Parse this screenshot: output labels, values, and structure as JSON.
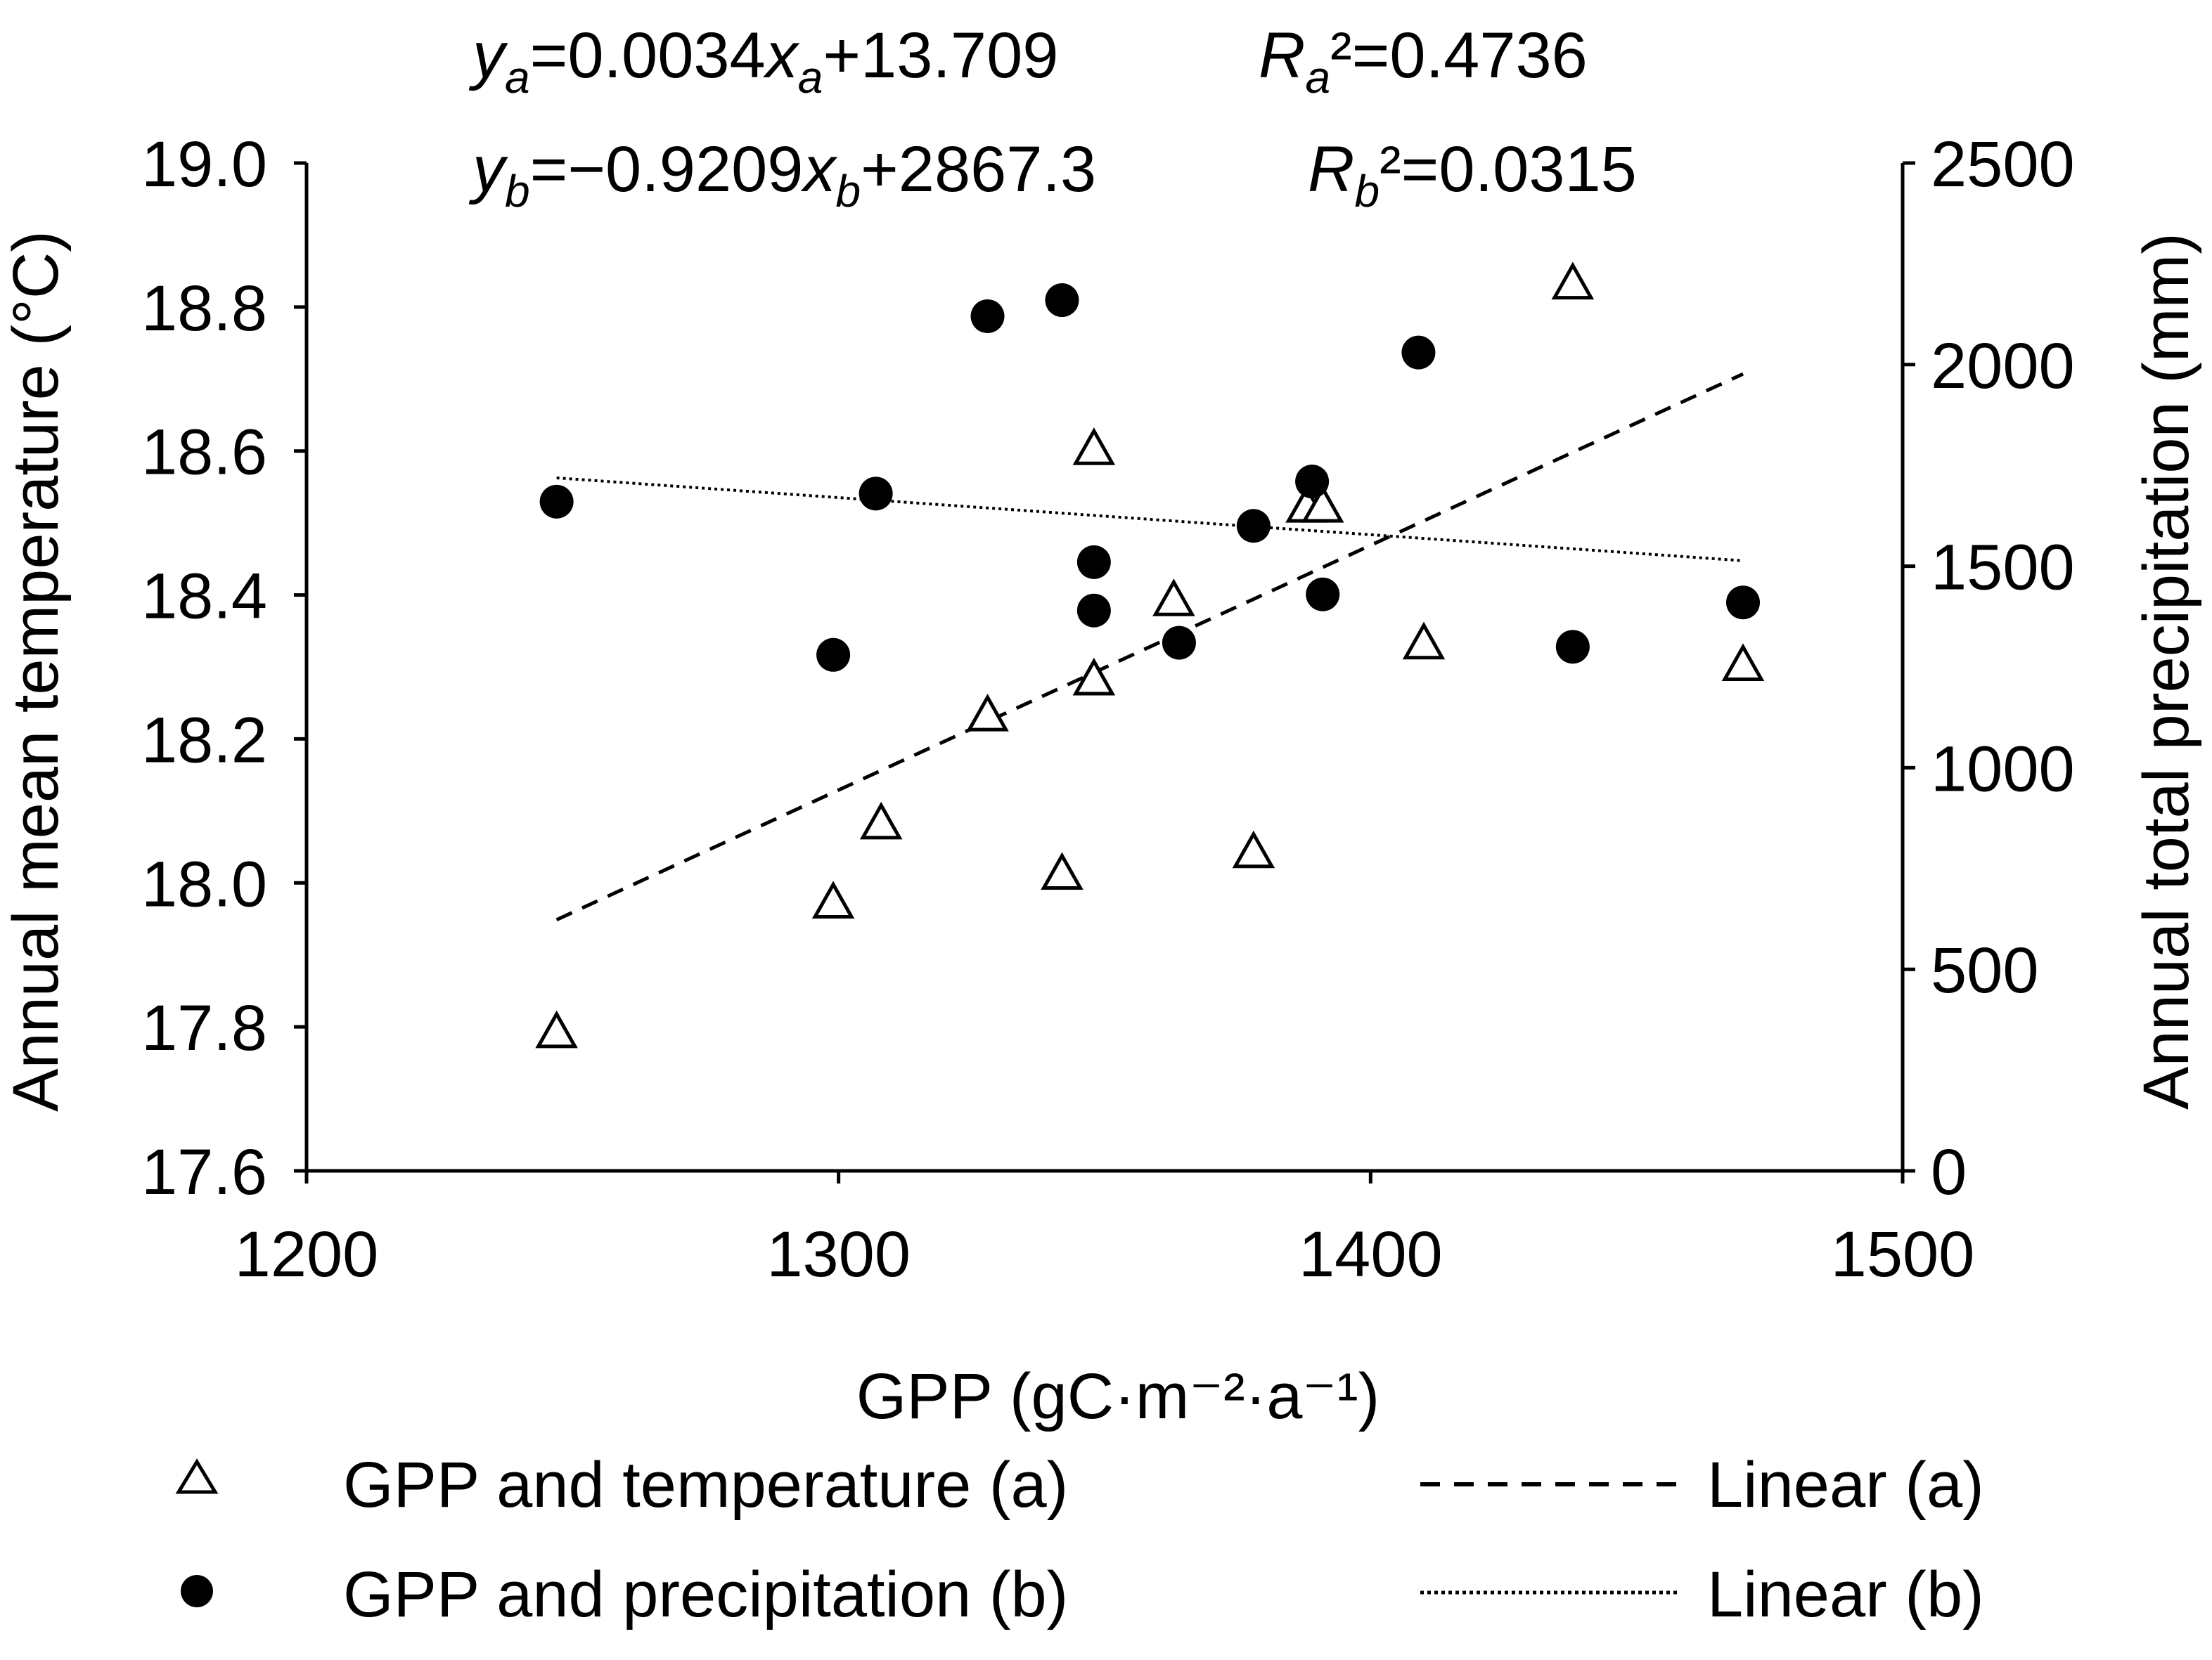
{
  "chart_data": {
    "type": "scatter",
    "xlabel": "GPP (gC·m⁻²·a⁻¹)",
    "ylabel_left": "Annual mean temperature (°C)",
    "ylabel_right": "Annual total precipitation (mm)",
    "xlim": [
      1200,
      1500
    ],
    "ylim_left": [
      17.6,
      19.0
    ],
    "ylim_right": [
      0,
      2500
    ],
    "x_ticks": [
      "1200",
      "1300",
      "1400",
      "1500"
    ],
    "y_left_ticks": [
      "17.6",
      "17.8",
      "18.0",
      "18.2",
      "18.4",
      "18.6",
      "18.8",
      "19.0"
    ],
    "y_right_ticks": [
      "0",
      "500",
      "1000",
      "1500",
      "2000",
      "2500"
    ],
    "grid": false,
    "legend_position": "bottom",
    "equations": {
      "a": {
        "y_sub": "a",
        "slope": "0.0034",
        "x_sub": "a",
        "intercept": "+13.709",
        "r_sub": "a",
        "r2": "0.4736"
      },
      "b": {
        "y_sub": "b",
        "slope": "−0.9209",
        "x_sub": "b",
        "intercept": "+2867.3",
        "r_sub": "b",
        "r2": "0.0315"
      }
    },
    "series": [
      {
        "name": "GPP and temperature (a)",
        "axis": "left",
        "marker": "triangle-open",
        "points": [
          [
            1247,
            17.79
          ],
          [
            1299,
            17.97
          ],
          [
            1308,
            18.08
          ],
          [
            1328,
            18.23
          ],
          [
            1342,
            18.01
          ],
          [
            1348,
            18.6
          ],
          [
            1348,
            18.28
          ],
          [
            1363,
            18.39
          ],
          [
            1378,
            18.04
          ],
          [
            1388,
            18.52
          ],
          [
            1391,
            18.52
          ],
          [
            1410,
            18.33
          ],
          [
            1438,
            18.83
          ],
          [
            1470,
            18.3
          ]
        ]
      },
      {
        "name": "GPP and precipitation (b)",
        "axis": "right",
        "marker": "circle-filled",
        "points": [
          [
            1247,
            1660
          ],
          [
            1299,
            1280
          ],
          [
            1307,
            1680
          ],
          [
            1328,
            2120
          ],
          [
            1342,
            2160
          ],
          [
            1348,
            1510
          ],
          [
            1348,
            1390
          ],
          [
            1364,
            1310
          ],
          [
            1378,
            1600
          ],
          [
            1389,
            1710
          ],
          [
            1391,
            1430
          ],
          [
            1409,
            2030
          ],
          [
            1438,
            1300
          ],
          [
            1470,
            1410
          ]
        ]
      }
    ],
    "trendlines": [
      {
        "name": "Linear (a)",
        "axis": "left",
        "style": "dashed",
        "slope": 0.0034,
        "intercept": 13.709,
        "x_range": [
          1247,
          1470
        ]
      },
      {
        "name": "Linear (b)",
        "axis": "right",
        "style": "dotted",
        "slope": -0.9209,
        "intercept": 2867.3,
        "x_range": [
          1247,
          1470
        ]
      }
    ],
    "legend": [
      {
        "label": "GPP and temperature (a)",
        "symbol": "△"
      },
      {
        "label": "GPP and precipitation (b)",
        "symbol": "●"
      },
      {
        "label": "Linear (a)",
        "symbol": "dashed-line"
      },
      {
        "label": "Linear (b)",
        "symbol": "dotted-line"
      }
    ],
    "colors": {
      "marker": "#000000",
      "background": "#ffffff"
    }
  }
}
